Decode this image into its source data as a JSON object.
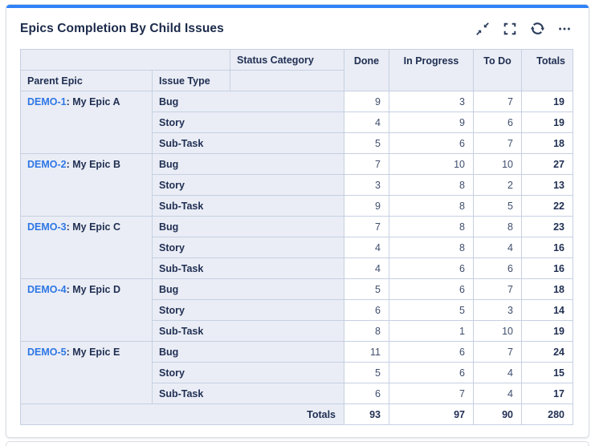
{
  "card": {
    "title": "Epics Completion By Child Issues"
  },
  "toolbar": {
    "icons": [
      "collapse-icon",
      "expand-icon",
      "refresh-icon",
      "more-icon"
    ]
  },
  "colors": {
    "accent": "#2e82f7",
    "link": "#2e77e5",
    "header_bg": "#eaedf5",
    "border": "#c6d0e2",
    "navy": "#1f2e52",
    "num": "#3f4e6e"
  },
  "table": {
    "header": {
      "status_category": "Status Category",
      "parent_epic": "Parent Epic",
      "issue_type": "Issue Type"
    },
    "columns": [
      "Done",
      "In Progress",
      "To Do",
      "Totals"
    ],
    "epic_separator": ": ",
    "groups": [
      {
        "key": "DEMO-1",
        "name": "My Epic A",
        "rows": [
          {
            "type": "Bug",
            "values": [
              9,
              3,
              7,
              19
            ]
          },
          {
            "type": "Story",
            "values": [
              4,
              9,
              6,
              19
            ]
          },
          {
            "type": "Sub-Task",
            "values": [
              5,
              6,
              7,
              18
            ]
          }
        ]
      },
      {
        "key": "DEMO-2",
        "name": "My Epic B",
        "rows": [
          {
            "type": "Bug",
            "values": [
              7,
              10,
              10,
              27
            ]
          },
          {
            "type": "Story",
            "values": [
              3,
              8,
              2,
              13
            ]
          },
          {
            "type": "Sub-Task",
            "values": [
              9,
              8,
              5,
              22
            ]
          }
        ]
      },
      {
        "key": "DEMO-3",
        "name": "My Epic C",
        "rows": [
          {
            "type": "Bug",
            "values": [
              7,
              8,
              8,
              23
            ]
          },
          {
            "type": "Story",
            "values": [
              4,
              8,
              4,
              16
            ]
          },
          {
            "type": "Sub-Task",
            "values": [
              4,
              6,
              6,
              16
            ]
          }
        ]
      },
      {
        "key": "DEMO-4",
        "name": "My Epic D",
        "rows": [
          {
            "type": "Bug",
            "values": [
              5,
              6,
              7,
              18
            ]
          },
          {
            "type": "Story",
            "values": [
              6,
              5,
              3,
              14
            ]
          },
          {
            "type": "Sub-Task",
            "values": [
              8,
              1,
              10,
              19
            ]
          }
        ]
      },
      {
        "key": "DEMO-5",
        "name": "My Epic E",
        "rows": [
          {
            "type": "Bug",
            "values": [
              11,
              6,
              7,
              24
            ]
          },
          {
            "type": "Story",
            "values": [
              5,
              6,
              4,
              15
            ]
          },
          {
            "type": "Sub-Task",
            "values": [
              6,
              7,
              4,
              17
            ]
          }
        ]
      }
    ],
    "totals": {
      "label": "Totals",
      "values": [
        93,
        97,
        90,
        280
      ]
    }
  }
}
